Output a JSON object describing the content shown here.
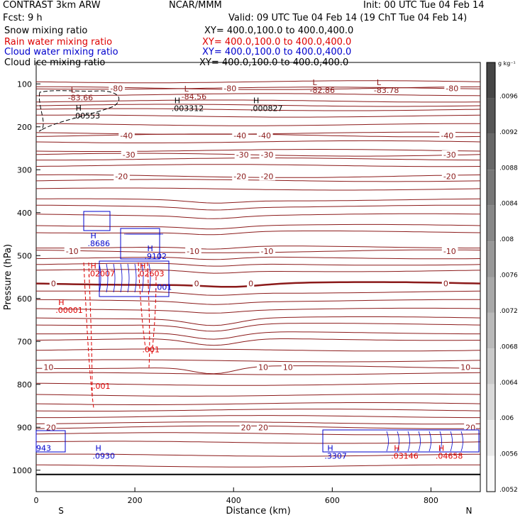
{
  "header": {
    "model": "CONTRAST  3km ARW",
    "center": "NCAR/MMM",
    "init": "Init: 00 UTC Tue 04 Feb 14",
    "fcst": "Fcst:     9 h",
    "valid": "Valid: 09 UTC Tue 04 Feb 14 (19 ChT Tue 04 Feb 14)"
  },
  "fields": [
    {
      "name": "Snow mixing ratio",
      "xy": "XY=  400.0,100.0  to  400.0,400.0",
      "color": "#000000"
    },
    {
      "name": "Rain water mixing ratio",
      "xy": "XY=  400.0,100.0  to  400.0,400.0",
      "color": "#dd0000"
    },
    {
      "name": "Cloud water mixing ratio",
      "xy": "XY=  400.0,100.0  to  400.0,400.0",
      "color": "#0000cc"
    },
    {
      "name": "Cloud ice mixing ratio",
      "xy": "XY=  400.0,100.0  to  400.0,400.0",
      "color": "#000000"
    }
  ],
  "chart_data": {
    "type": "line",
    "xlabel": "Distance (km)",
    "ylabel": "Pressure (hPa)",
    "xlim": [
      0,
      900
    ],
    "ylim": [
      1050,
      50
    ],
    "x_ticks": [
      0,
      200,
      400,
      600,
      800
    ],
    "y_ticks": [
      100,
      200,
      300,
      400,
      500,
      600,
      700,
      800,
      900,
      1000
    ],
    "x_end_labels": {
      "left": "S",
      "right": "N"
    },
    "temperature_contour_color": "#8b1a1a",
    "temperature_contours": [
      {
        "value": -80,
        "pressure": 110,
        "labels": [
          {
            "text": "-80",
            "x": 150
          },
          {
            "text": "-80",
            "x": 380
          },
          {
            "text": "-80",
            "x": 830
          }
        ]
      },
      {
        "value": -40,
        "pressure": 220,
        "labels": [
          {
            "text": "-40",
            "x": 170
          },
          {
            "text": "-40",
            "x": 400
          },
          {
            "text": "-40",
            "x": 450
          },
          {
            "text": "-40",
            "x": 820
          }
        ]
      },
      {
        "value": -30,
        "pressure": 265,
        "labels": [
          {
            "text": "-30",
            "x": 175
          },
          {
            "text": "-30",
            "x": 405
          },
          {
            "text": "-30",
            "x": 455
          },
          {
            "text": "-30",
            "x": 825
          }
        ]
      },
      {
        "value": -20,
        "pressure": 315,
        "labels": [
          {
            "text": "-20",
            "x": 160
          },
          {
            "text": "-20",
            "x": 400
          },
          {
            "text": "-20",
            "x": 455
          },
          {
            "text": "-20",
            "x": 825
          }
        ]
      },
      {
        "value": -10,
        "pressure": 490,
        "labels": [
          {
            "text": "-10",
            "x": 60
          },
          {
            "text": "-10",
            "x": 305
          },
          {
            "text": "-10",
            "x": 455
          },
          {
            "text": "-10",
            "x": 825
          }
        ]
      },
      {
        "value": 0,
        "pressure": 565,
        "labels": [
          {
            "text": "0",
            "x": 30
          },
          {
            "text": "0",
            "x": 320
          },
          {
            "text": "0",
            "x": 430
          },
          {
            "text": "0",
            "x": 825
          }
        ]
      },
      {
        "value": 10,
        "pressure": 760,
        "labels": [
          {
            "text": "10",
            "x": 15
          },
          {
            "text": "10",
            "x": 450
          },
          {
            "text": "10",
            "x": 500
          },
          {
            "text": "10",
            "x": 860
          }
        ]
      },
      {
        "value": 20,
        "pressure": 900,
        "labels": [
          {
            "text": "20",
            "x": 20
          },
          {
            "text": "20",
            "x": 415
          },
          {
            "text": "20",
            "x": 450
          },
          {
            "text": "20",
            "x": 870
          }
        ]
      }
    ],
    "extrema_labels": [
      {
        "kind": "L",
        "value": "-83.66",
        "x": 70,
        "p": 120,
        "color": "#8b1a1a"
      },
      {
        "kind": "L",
        "value": "-84.56",
        "x": 300,
        "p": 118,
        "color": "#8b1a1a"
      },
      {
        "kind": "L",
        "value": "-82.86",
        "x": 560,
        "p": 103,
        "color": "#8b1a1a"
      },
      {
        "kind": "L",
        "value": "-83.78",
        "x": 690,
        "p": 103,
        "color": "#8b1a1a"
      },
      {
        "kind": "H",
        "value": ".00553",
        "x": 80,
        "p": 162,
        "color": "#000000"
      },
      {
        "kind": "H",
        "value": ".003312",
        "x": 280,
        "p": 145,
        "color": "#000000"
      },
      {
        "kind": "H",
        "value": ".000827",
        "x": 440,
        "p": 145,
        "color": "#000000"
      },
      {
        "kind": "H",
        "value": ".8686",
        "x": 110,
        "p": 460,
        "color": "#0000cc"
      },
      {
        "kind": "H",
        "value": ".9102",
        "x": 225,
        "p": 490,
        "color": "#0000cc"
      },
      {
        "kind": "H",
        "value": ".02007",
        "x": 110,
        "p": 530,
        "color": "#dd0000"
      },
      {
        "kind": "H",
        "value": ".02603",
        "x": 210,
        "p": 530,
        "color": "#dd0000"
      },
      {
        "kind": "H",
        "value": ".00001",
        "x": 45,
        "p": 615,
        "color": "#dd0000"
      },
      {
        "kind": "H",
        "value": ".0930",
        "x": 120,
        "p": 955,
        "color": "#0000cc"
      },
      {
        "kind": "H",
        "value": ".3307",
        "x": 590,
        "p": 955,
        "color": "#0000cc"
      },
      {
        "kind": "H",
        "value": ".03146",
        "x": 725,
        "p": 955,
        "color": "#dd0000"
      },
      {
        "kind": "H",
        "value": ".04658",
        "x": 815,
        "p": 955,
        "color": "#dd0000"
      }
    ],
    "contour_value_labels": [
      {
        "text": ".001",
        "x": 240,
        "p": 580,
        "color": "#0000cc"
      },
      {
        "text": ".001",
        "x": 215,
        "p": 725,
        "color": "#dd0000"
      },
      {
        "text": ".001",
        "x": 115,
        "p": 810,
        "color": "#dd0000"
      },
      {
        "text": "943",
        "x": 0,
        "p": 955,
        "color": "#0000cc"
      }
    ],
    "colorbar": {
      "unit": "g kg⁻¹",
      "labels": [
        ".0096",
        ".0092",
        ".0088",
        ".0084",
        ".008",
        ".0076",
        ".0072",
        ".0068",
        ".0064",
        ".006",
        ".0056",
        ".0052"
      ]
    }
  }
}
